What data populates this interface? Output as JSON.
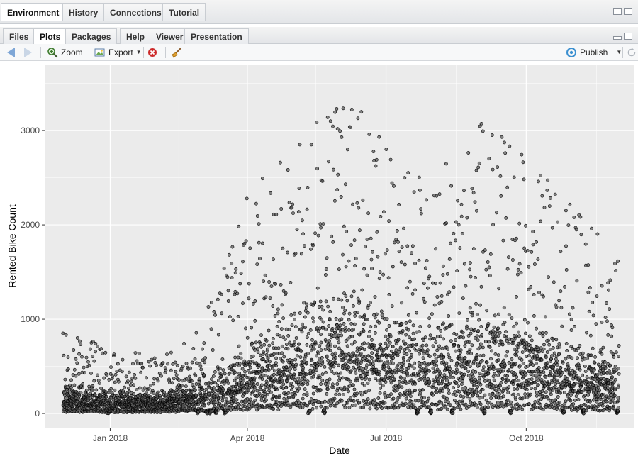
{
  "top_tabs": [
    {
      "label": "Environment",
      "active": true
    },
    {
      "label": "History",
      "active": false
    },
    {
      "label": "Connections",
      "active": false
    },
    {
      "label": "Tutorial",
      "active": false
    }
  ],
  "bottom_tabs": [
    {
      "label": "Files",
      "active": false
    },
    {
      "label": "Plots",
      "active": true
    },
    {
      "label": "Packages",
      "active": false
    },
    {
      "label": "Help",
      "active": false
    },
    {
      "label": "Viewer",
      "active": false
    },
    {
      "label": "Presentation",
      "active": false
    }
  ],
  "toolbar": {
    "zoom_label": "Zoom",
    "export_label": "Export",
    "publish_label": "Publish"
  },
  "colors": {
    "panel_bg": "#ebebeb",
    "grid_major": "#ffffff",
    "point_fill": "#555555",
    "point_stroke": "#000000"
  },
  "chart_data": {
    "type": "scatter",
    "xlabel": "Date",
    "ylabel": "Rented Bike Count",
    "x_ticks": [
      "Jan 2018",
      "Apr 2018",
      "Jul 2018",
      "Oct 2018"
    ],
    "y_ticks": [
      0,
      1000,
      2000,
      3000
    ],
    "xlim": [
      "2017-11-19",
      "2018-12-11"
    ],
    "ylim": [
      -150,
      3700
    ],
    "x_range": [
      "2017-12-01",
      "2018-11-30"
    ],
    "daily_profile": {
      "x": [
        "2017-12-01",
        "2018-01-01",
        "2018-02-01",
        "2018-03-01",
        "2018-04-01",
        "2018-05-01",
        "2018-06-01",
        "2018-07-01",
        "2018-08-01",
        "2018-09-01",
        "2018-10-01",
        "2018-11-01",
        "2018-11-30"
      ],
      "peak": [
        900,
        700,
        600,
        900,
        2400,
        2800,
        3400,
        3000,
        2500,
        3200,
        2700,
        2200,
        1700
      ],
      "typical": [
        300,
        250,
        220,
        400,
        700,
        1000,
        1300,
        1100,
        900,
        1100,
        1000,
        700,
        600
      ]
    },
    "grid": true,
    "legend": "none"
  }
}
